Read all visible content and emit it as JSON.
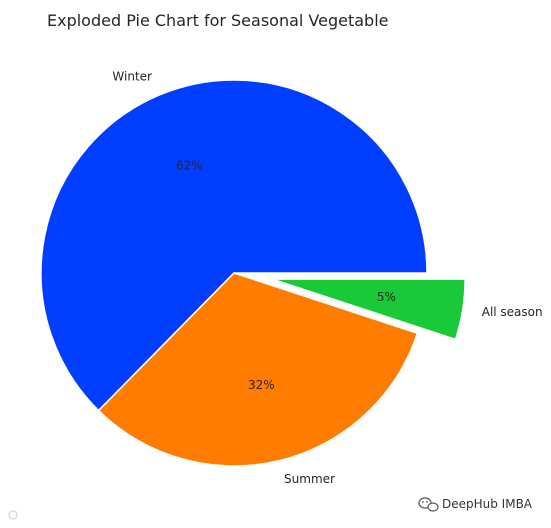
{
  "chart_data": {
    "type": "pie",
    "title": "Exploded Pie Chart for Seasonal Vegetable",
    "categories": [
      "Winter",
      "Summer",
      "All season"
    ],
    "values": [
      62,
      32,
      5
    ],
    "percent_labels": [
      "62%",
      "32%",
      "5%"
    ],
    "colors": [
      "#023eff",
      "#ff7c00",
      "#1ac938"
    ],
    "explode": [
      0,
      0,
      0.2
    ],
    "start_angle_deg": 0,
    "counterclock": true
  },
  "watermark": {
    "brand": "DeepHub IMBA",
    "icon": "wechat-icon"
  }
}
